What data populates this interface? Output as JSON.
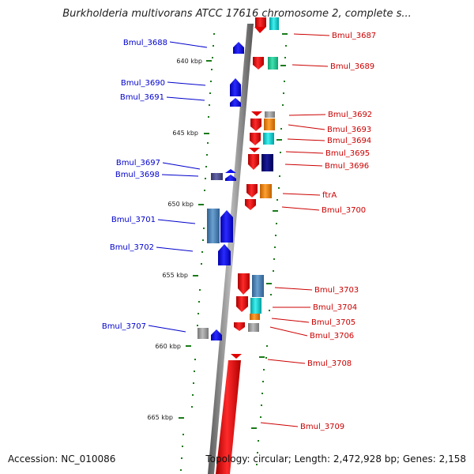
{
  "header": {
    "title": "Burkholderia multivorans ATCC 17616 chromosome 2, complete s..."
  },
  "footer": {
    "accession": "Accession: NC_010086",
    "summary": "Topology: circular; Length: 2,472,928 bp; Genes: 2,158"
  },
  "colors": {
    "left_strand": "#0000dd",
    "right_strand": "#dd0000",
    "backbone": "#888888",
    "tick": "#1a7a1a"
  },
  "kbp_marks": [
    "640 kbp",
    "645 kbp",
    "650 kbp",
    "655 kbp",
    "660 kbp",
    "665 kbp"
  ],
  "left_genes": [
    "Bmul_3688",
    "Bmul_3690",
    "Bmul_3691",
    "Bmul_3697",
    "Bmul_3698",
    "Bmul_3701",
    "Bmul_3702",
    "Bmul_3707"
  ],
  "right_genes": [
    "Bmul_3687",
    "Bmul_3689",
    "Bmul_3692",
    "Bmul_3693",
    "Bmul_3694",
    "Bmul_3695",
    "Bmul_3696",
    "ftrA",
    "Bmul_3700",
    "Bmul_3703",
    "Bmul_3704",
    "Bmul_3705",
    "Bmul_3706",
    "Bmul_3708",
    "Bmul_3709"
  ]
}
